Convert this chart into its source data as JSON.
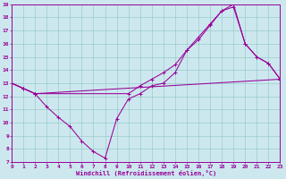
{
  "xlabel": "Windchill (Refroidissement éolien,°C)",
  "ylabel": "",
  "bg_color": "#cce8ee",
  "line_color": "#990099",
  "grid_color": "#99cccc",
  "xlim": [
    0,
    23
  ],
  "ylim": [
    7,
    19
  ],
  "xticks": [
    0,
    1,
    2,
    3,
    4,
    5,
    6,
    7,
    8,
    9,
    10,
    11,
    12,
    13,
    14,
    15,
    16,
    17,
    18,
    19,
    20,
    21,
    22,
    23
  ],
  "yticks": [
    7,
    8,
    9,
    10,
    11,
    12,
    13,
    14,
    15,
    16,
    17,
    18,
    19
  ],
  "line1_x": [
    0,
    1,
    2,
    23
  ],
  "line1_y": [
    13,
    12.6,
    12.2,
    13.3
  ],
  "line2_x": [
    0,
    1,
    2,
    3,
    4,
    5,
    6,
    7,
    8,
    9,
    10,
    11,
    12,
    13,
    14,
    15,
    16,
    17,
    18,
    19,
    20,
    21,
    22,
    23
  ],
  "line2_y": [
    13,
    12.6,
    12.2,
    11.2,
    10.4,
    9.7,
    8.6,
    7.8,
    7.3,
    10.3,
    11.8,
    12.2,
    12.8,
    13.0,
    13.8,
    15.5,
    16.3,
    17.4,
    18.5,
    18.8,
    16.0,
    15.0,
    14.5,
    13.3
  ],
  "line3_x": [
    0,
    1,
    2,
    10,
    11,
    12,
    13,
    14,
    15,
    16,
    17,
    18,
    19,
    20,
    21,
    22,
    23
  ],
  "line3_y": [
    13,
    12.6,
    12.2,
    12.2,
    12.8,
    13.3,
    13.8,
    14.4,
    15.5,
    16.5,
    17.5,
    18.5,
    19.0,
    16.0,
    15.0,
    14.5,
    13.3
  ]
}
